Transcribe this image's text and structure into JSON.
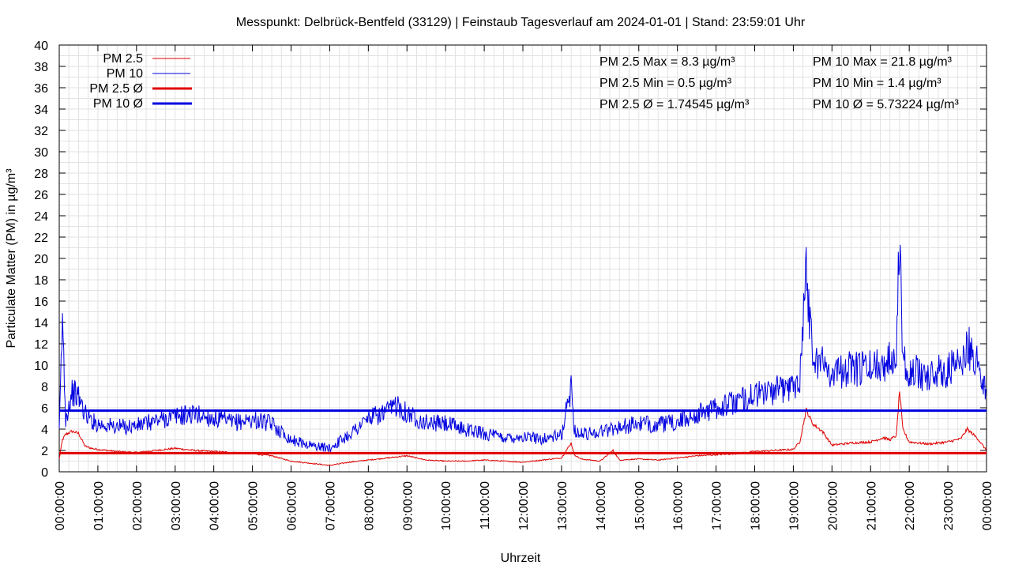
{
  "chart_data": {
    "type": "line",
    "title": "Messpunkt: Delbrück-Bentfeld (33129) | Feinstaub Tagesverlauf am 2024-01-01 | Stand: 23:59:01 Uhr",
    "xlabel": "Uhrzeit",
    "ylabel": "Particulate Matter (PM) in µg/m³",
    "ylim": [
      0,
      40
    ],
    "xlim_hours": [
      0,
      24
    ],
    "x_tick_labels": [
      "00:00:00",
      "01:00:00",
      "02:00:00",
      "03:00:00",
      "04:00:00",
      "05:00:00",
      "06:00:00",
      "07:00:00",
      "08:00:00",
      "09:00:00",
      "10:00:00",
      "11:00:00",
      "12:00:00",
      "13:00:00",
      "14:00:00",
      "15:00:00",
      "16:00:00",
      "17:00:00",
      "18:00:00",
      "19:00:00",
      "20:00:00",
      "21:00:00",
      "22:00:00",
      "23:00:00",
      "00:00:00"
    ],
    "y_ticks": [
      0,
      2,
      4,
      6,
      8,
      10,
      12,
      14,
      16,
      18,
      20,
      22,
      24,
      26,
      28,
      30,
      32,
      34,
      36,
      38,
      40
    ],
    "grid": true,
    "legend_position": "top-left",
    "legend": [
      "PM 2.5",
      "PM 10",
      "PM 2.5 Ø",
      "PM 10 Ø"
    ],
    "series": [
      {
        "name": "PM 2.5",
        "color": "#e00000",
        "x": [
          "00:00",
          "00:05",
          "00:10",
          "00:20",
          "00:30",
          "00:40",
          "00:50",
          "01:00",
          "01:30",
          "02:00",
          "02:30",
          "03:00",
          "03:30",
          "04:00",
          "04:30",
          "05:00",
          "05:30",
          "06:00",
          "06:30",
          "07:00",
          "07:30",
          "08:00",
          "08:30",
          "09:00",
          "09:30",
          "10:00",
          "10:30",
          "11:00",
          "11:30",
          "12:00",
          "12:30",
          "13:00",
          "13:15",
          "13:20",
          "13:30",
          "14:00",
          "14:20",
          "14:30",
          "15:00",
          "15:30",
          "16:00",
          "16:30",
          "17:00",
          "17:30",
          "18:00",
          "18:30",
          "19:00",
          "19:10",
          "19:20",
          "19:30",
          "19:45",
          "20:00",
          "20:30",
          "21:00",
          "21:20",
          "21:30",
          "21:40",
          "21:45",
          "21:50",
          "22:00",
          "22:30",
          "23:00",
          "23:20",
          "23:30",
          "23:45",
          "24:00"
        ],
        "values": [
          1.2,
          3.0,
          3.5,
          3.8,
          3.6,
          2.4,
          2.2,
          2.1,
          1.9,
          1.8,
          2.0,
          2.2,
          2.0,
          1.9,
          1.8,
          1.7,
          1.5,
          1.0,
          0.8,
          0.6,
          0.9,
          1.1,
          1.3,
          1.5,
          1.1,
          1.0,
          1.0,
          1.1,
          1.0,
          0.9,
          1.1,
          1.3,
          2.7,
          1.6,
          1.2,
          1.0,
          2.0,
          1.1,
          1.2,
          1.1,
          1.3,
          1.5,
          1.6,
          1.7,
          1.9,
          2.0,
          2.1,
          2.8,
          5.8,
          4.5,
          3.8,
          2.5,
          2.7,
          2.8,
          3.2,
          3.0,
          3.4,
          7.6,
          4.0,
          2.8,
          2.6,
          2.8,
          3.1,
          4.0,
          3.2,
          2.0
        ]
      },
      {
        "name": "PM 10",
        "color": "#0000e0",
        "x": [
          "00:00",
          "00:05",
          "00:10",
          "00:20",
          "00:30",
          "00:40",
          "00:50",
          "01:00",
          "01:30",
          "02:00",
          "02:30",
          "03:00",
          "03:30",
          "04:00",
          "04:30",
          "05:00",
          "05:30",
          "06:00",
          "06:30",
          "07:00",
          "07:30",
          "08:00",
          "08:30",
          "08:45",
          "09:00",
          "09:30",
          "10:00",
          "10:30",
          "11:00",
          "11:30",
          "12:00",
          "12:30",
          "13:00",
          "13:15",
          "13:20",
          "13:30",
          "14:00",
          "14:30",
          "15:00",
          "15:30",
          "16:00",
          "16:30",
          "17:00",
          "17:30",
          "18:00",
          "18:30",
          "19:00",
          "19:10",
          "19:20",
          "19:30",
          "19:45",
          "20:00",
          "20:30",
          "21:00",
          "21:20",
          "21:30",
          "21:40",
          "21:45",
          "21:50",
          "22:00",
          "22:30",
          "23:00",
          "23:20",
          "23:30",
          "23:45",
          "24:00"
        ],
        "values": [
          3.5,
          14.4,
          5.0,
          7.5,
          7.0,
          5.5,
          4.8,
          4.5,
          4.2,
          4.3,
          4.8,
          5.2,
          5.4,
          5.0,
          4.6,
          4.9,
          4.5,
          3.0,
          2.5,
          2.2,
          3.5,
          5.0,
          5.6,
          6.4,
          5.5,
          4.6,
          4.5,
          4.0,
          3.6,
          3.2,
          3.3,
          3.1,
          3.4,
          8.0,
          4.0,
          3.5,
          3.8,
          4.2,
          4.5,
          4.4,
          4.6,
          5.4,
          6.0,
          6.5,
          7.2,
          7.6,
          8.0,
          9.0,
          19.0,
          11.0,
          10.2,
          9.4,
          9.6,
          9.8,
          10.2,
          10.5,
          12.0,
          21.8,
          11.0,
          9.5,
          9.0,
          9.6,
          10.0,
          11.8,
          10.5,
          7.5
        ]
      },
      {
        "name": "PM 2.5 Ø",
        "color": "#e00000",
        "value": 1.74545
      },
      {
        "name": "PM 10 Ø",
        "color": "#0000e0",
        "value": 5.73224
      }
    ],
    "annotations": {
      "pm25_max": "PM 2.5 Max = 8.3 µg/m³",
      "pm25_min": "PM 2.5 Min = 0.5 µg/m³",
      "pm25_avg": "PM 2.5 Ø = 1.74545 µg/m³",
      "pm10_max": "PM 10 Max = 21.8 µg/m³",
      "pm10_min": "PM 10 Min = 1.4 µg/m³",
      "pm10_avg": "PM 10 Ø = 5.73224 µg/m³"
    }
  }
}
